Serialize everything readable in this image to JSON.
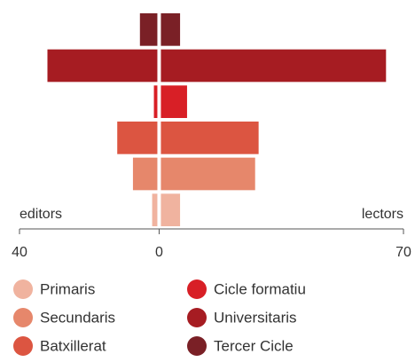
{
  "chart_data": {
    "type": "butterfly",
    "categories": [
      "Primaris",
      "Secundaris",
      "Batxillerat",
      "Cicle formatiu",
      "Universitaris",
      "Tercer Cicle"
    ],
    "colors": [
      "#f0b39f",
      "#e6876b",
      "#dc5541",
      "#d81f26",
      "#a61c22",
      "#7a2026"
    ],
    "series": [
      {
        "name": "editors",
        "values": [
          -2,
          -7.5,
          -12,
          -1.5,
          -32,
          -5.5
        ]
      },
      {
        "name": "lectors",
        "values": [
          6,
          27.5,
          28.5,
          8,
          65,
          6
        ]
      }
    ],
    "xlim": [
      -40,
      70
    ],
    "xticks": [
      {
        "value": -40,
        "label": "40"
      },
      0,
      70
    ]
  }
}
